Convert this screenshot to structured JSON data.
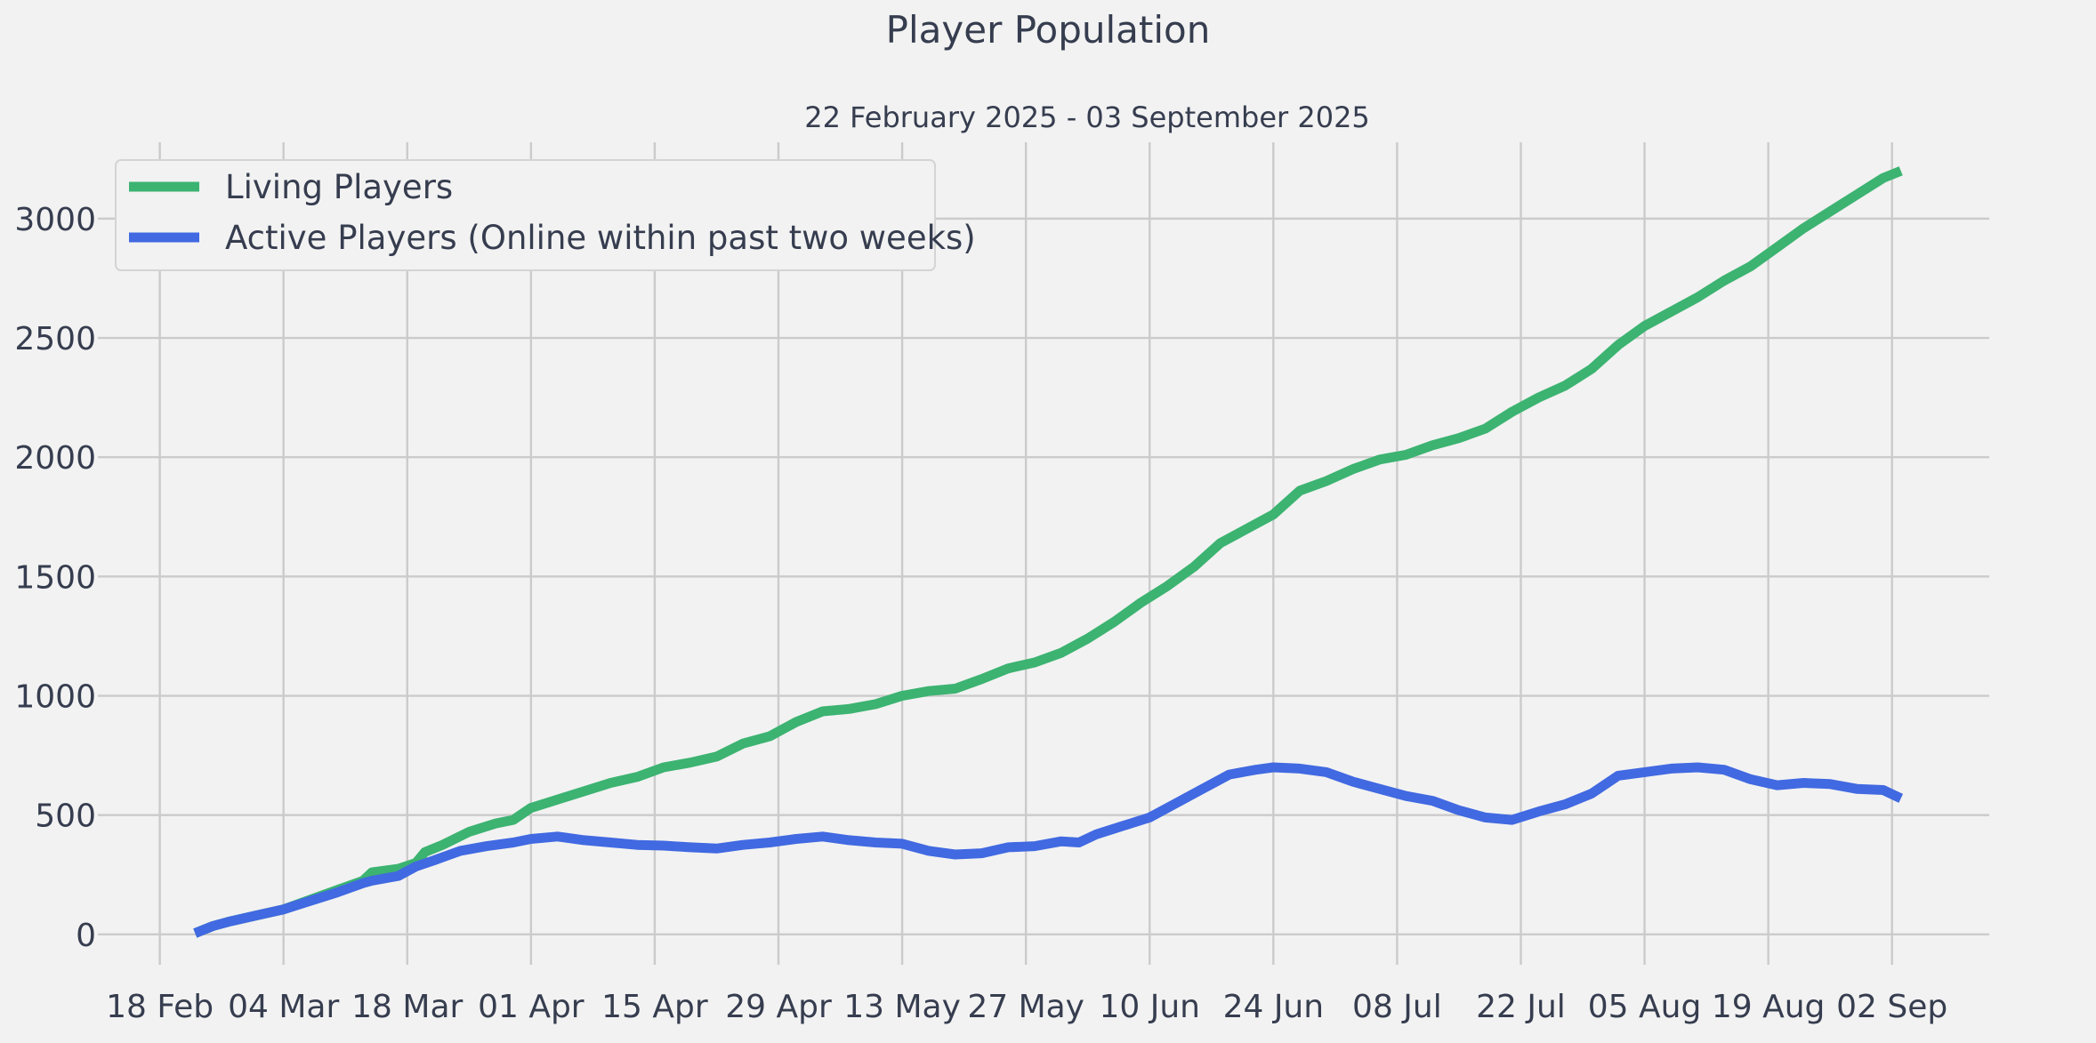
{
  "chart_data": {
    "type": "line",
    "title": "Player Population",
    "subtitle": "22 February 2025 - 03 September 2025",
    "xlabel": "",
    "ylabel": "",
    "x_start": "2025-02-22",
    "x_end": "2025-09-03",
    "xlim": [
      "2025-02-12",
      "2025-09-13"
    ],
    "ylim": [
      -90,
      3320
    ],
    "x_ticks": [
      {
        "date": "2025-02-18",
        "label": "18 Feb"
      },
      {
        "date": "2025-03-04",
        "label": "04 Mar"
      },
      {
        "date": "2025-03-18",
        "label": "18 Mar"
      },
      {
        "date": "2025-04-01",
        "label": "01 Apr"
      },
      {
        "date": "2025-04-15",
        "label": "15 Apr"
      },
      {
        "date": "2025-04-29",
        "label": "29 Apr"
      },
      {
        "date": "2025-05-13",
        "label": "13 May"
      },
      {
        "date": "2025-05-27",
        "label": "27 May"
      },
      {
        "date": "2025-06-10",
        "label": "10 Jun"
      },
      {
        "date": "2025-06-24",
        "label": "24 Jun"
      },
      {
        "date": "2025-07-08",
        "label": "08 Jul"
      },
      {
        "date": "2025-07-22",
        "label": "22 Jul"
      },
      {
        "date": "2025-08-05",
        "label": "05 Aug"
      },
      {
        "date": "2025-08-19",
        "label": "19 Aug"
      },
      {
        "date": "2025-09-02",
        "label": "02 Sep"
      }
    ],
    "y_ticks": [
      0,
      500,
      1000,
      1500,
      2000,
      2500,
      3000
    ],
    "grid": true,
    "legend_position": "top-left",
    "series": [
      {
        "name": "Living Players",
        "color": "#3cb371",
        "points": [
          [
            "2025-02-22",
            5
          ],
          [
            "2025-02-24",
            35
          ],
          [
            "2025-02-26",
            55
          ],
          [
            "2025-03-01",
            80
          ],
          [
            "2025-03-04",
            105
          ],
          [
            "2025-03-07",
            145
          ],
          [
            "2025-03-10",
            185
          ],
          [
            "2025-03-13",
            225
          ],
          [
            "2025-03-14",
            260
          ],
          [
            "2025-03-17",
            275
          ],
          [
            "2025-03-19",
            300
          ],
          [
            "2025-03-20",
            345
          ],
          [
            "2025-03-22",
            375
          ],
          [
            "2025-03-25",
            430
          ],
          [
            "2025-03-28",
            465
          ],
          [
            "2025-03-30",
            480
          ],
          [
            "2025-04-01",
            530
          ],
          [
            "2025-04-04",
            565
          ],
          [
            "2025-04-07",
            600
          ],
          [
            "2025-04-10",
            635
          ],
          [
            "2025-04-13",
            660
          ],
          [
            "2025-04-16",
            700
          ],
          [
            "2025-04-19",
            720
          ],
          [
            "2025-04-22",
            745
          ],
          [
            "2025-04-25",
            800
          ],
          [
            "2025-04-28",
            830
          ],
          [
            "2025-05-01",
            890
          ],
          [
            "2025-05-04",
            935
          ],
          [
            "2025-05-07",
            945
          ],
          [
            "2025-05-10",
            965
          ],
          [
            "2025-05-13",
            1000
          ],
          [
            "2025-05-16",
            1020
          ],
          [
            "2025-05-19",
            1030
          ],
          [
            "2025-05-22",
            1070
          ],
          [
            "2025-05-25",
            1115
          ],
          [
            "2025-05-28",
            1140
          ],
          [
            "2025-05-31",
            1180
          ],
          [
            "2025-06-03",
            1240
          ],
          [
            "2025-06-06",
            1310
          ],
          [
            "2025-06-09",
            1390
          ],
          [
            "2025-06-12",
            1460
          ],
          [
            "2025-06-15",
            1540
          ],
          [
            "2025-06-18",
            1640
          ],
          [
            "2025-06-21",
            1700
          ],
          [
            "2025-06-24",
            1760
          ],
          [
            "2025-06-27",
            1860
          ],
          [
            "2025-06-30",
            1900
          ],
          [
            "2025-07-03",
            1950
          ],
          [
            "2025-07-06",
            1990
          ],
          [
            "2025-07-09",
            2010
          ],
          [
            "2025-07-12",
            2050
          ],
          [
            "2025-07-15",
            2080
          ],
          [
            "2025-07-18",
            2120
          ],
          [
            "2025-07-21",
            2190
          ],
          [
            "2025-07-24",
            2250
          ],
          [
            "2025-07-27",
            2300
          ],
          [
            "2025-07-30",
            2370
          ],
          [
            "2025-08-02",
            2470
          ],
          [
            "2025-08-05",
            2550
          ],
          [
            "2025-08-08",
            2610
          ],
          [
            "2025-08-11",
            2670
          ],
          [
            "2025-08-14",
            2740
          ],
          [
            "2025-08-17",
            2800
          ],
          [
            "2025-08-20",
            2880
          ],
          [
            "2025-08-23",
            2960
          ],
          [
            "2025-08-26",
            3030
          ],
          [
            "2025-08-29",
            3100
          ],
          [
            "2025-09-01",
            3170
          ],
          [
            "2025-09-03",
            3200
          ]
        ]
      },
      {
        "name": "Active Players (Online within past two weeks)",
        "color": "#4169e1",
        "points": [
          [
            "2025-02-22",
            5
          ],
          [
            "2025-02-24",
            35
          ],
          [
            "2025-02-26",
            55
          ],
          [
            "2025-03-01",
            80
          ],
          [
            "2025-03-04",
            105
          ],
          [
            "2025-03-07",
            140
          ],
          [
            "2025-03-10",
            175
          ],
          [
            "2025-03-13",
            215
          ],
          [
            "2025-03-14",
            225
          ],
          [
            "2025-03-17",
            245
          ],
          [
            "2025-03-19",
            285
          ],
          [
            "2025-03-21",
            310
          ],
          [
            "2025-03-24",
            350
          ],
          [
            "2025-03-27",
            370
          ],
          [
            "2025-03-30",
            385
          ],
          [
            "2025-04-01",
            400
          ],
          [
            "2025-04-04",
            410
          ],
          [
            "2025-04-07",
            395
          ],
          [
            "2025-04-10",
            385
          ],
          [
            "2025-04-13",
            375
          ],
          [
            "2025-04-16",
            372
          ],
          [
            "2025-04-19",
            365
          ],
          [
            "2025-04-22",
            360
          ],
          [
            "2025-04-25",
            375
          ],
          [
            "2025-04-28",
            385
          ],
          [
            "2025-05-01",
            400
          ],
          [
            "2025-05-04",
            410
          ],
          [
            "2025-05-07",
            395
          ],
          [
            "2025-05-10",
            385
          ],
          [
            "2025-05-13",
            380
          ],
          [
            "2025-05-16",
            350
          ],
          [
            "2025-05-19",
            335
          ],
          [
            "2025-05-22",
            340
          ],
          [
            "2025-05-25",
            365
          ],
          [
            "2025-05-28",
            370
          ],
          [
            "2025-05-31",
            390
          ],
          [
            "2025-06-02",
            385
          ],
          [
            "2025-06-04",
            420
          ],
          [
            "2025-06-07",
            455
          ],
          [
            "2025-06-10",
            490
          ],
          [
            "2025-06-13",
            550
          ],
          [
            "2025-06-16",
            610
          ],
          [
            "2025-06-19",
            670
          ],
          [
            "2025-06-22",
            690
          ],
          [
            "2025-06-24",
            700
          ],
          [
            "2025-06-27",
            695
          ],
          [
            "2025-06-30",
            680
          ],
          [
            "2025-07-03",
            640
          ],
          [
            "2025-07-06",
            610
          ],
          [
            "2025-07-09",
            580
          ],
          [
            "2025-07-12",
            560
          ],
          [
            "2025-07-15",
            520
          ],
          [
            "2025-07-18",
            490
          ],
          [
            "2025-07-21",
            480
          ],
          [
            "2025-07-24",
            515
          ],
          [
            "2025-07-27",
            545
          ],
          [
            "2025-07-30",
            590
          ],
          [
            "2025-08-02",
            665
          ],
          [
            "2025-08-05",
            680
          ],
          [
            "2025-08-08",
            695
          ],
          [
            "2025-08-11",
            700
          ],
          [
            "2025-08-14",
            690
          ],
          [
            "2025-08-17",
            650
          ],
          [
            "2025-08-20",
            625
          ],
          [
            "2025-08-23",
            635
          ],
          [
            "2025-08-26",
            630
          ],
          [
            "2025-08-29",
            610
          ],
          [
            "2025-09-01",
            605
          ],
          [
            "2025-09-03",
            570
          ]
        ]
      }
    ]
  }
}
